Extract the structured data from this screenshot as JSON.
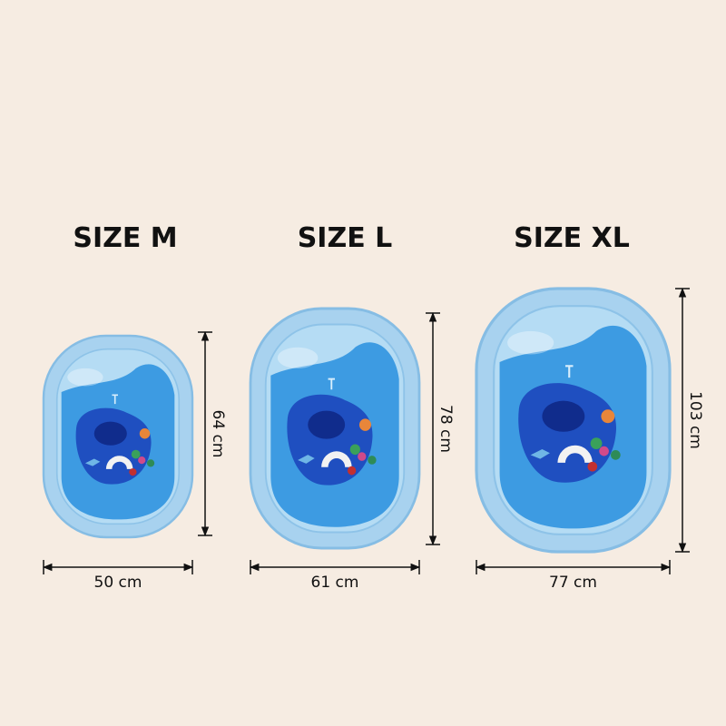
{
  "sizes": [
    {
      "title": "SIZE M",
      "height": "64 cm",
      "width": "50 cm"
    },
    {
      "title": "SIZE L",
      "height": "78 cm",
      "width": "61 cm"
    },
    {
      "title": "SIZE XL",
      "height": "103 cm",
      "width": "77 cm"
    }
  ]
}
